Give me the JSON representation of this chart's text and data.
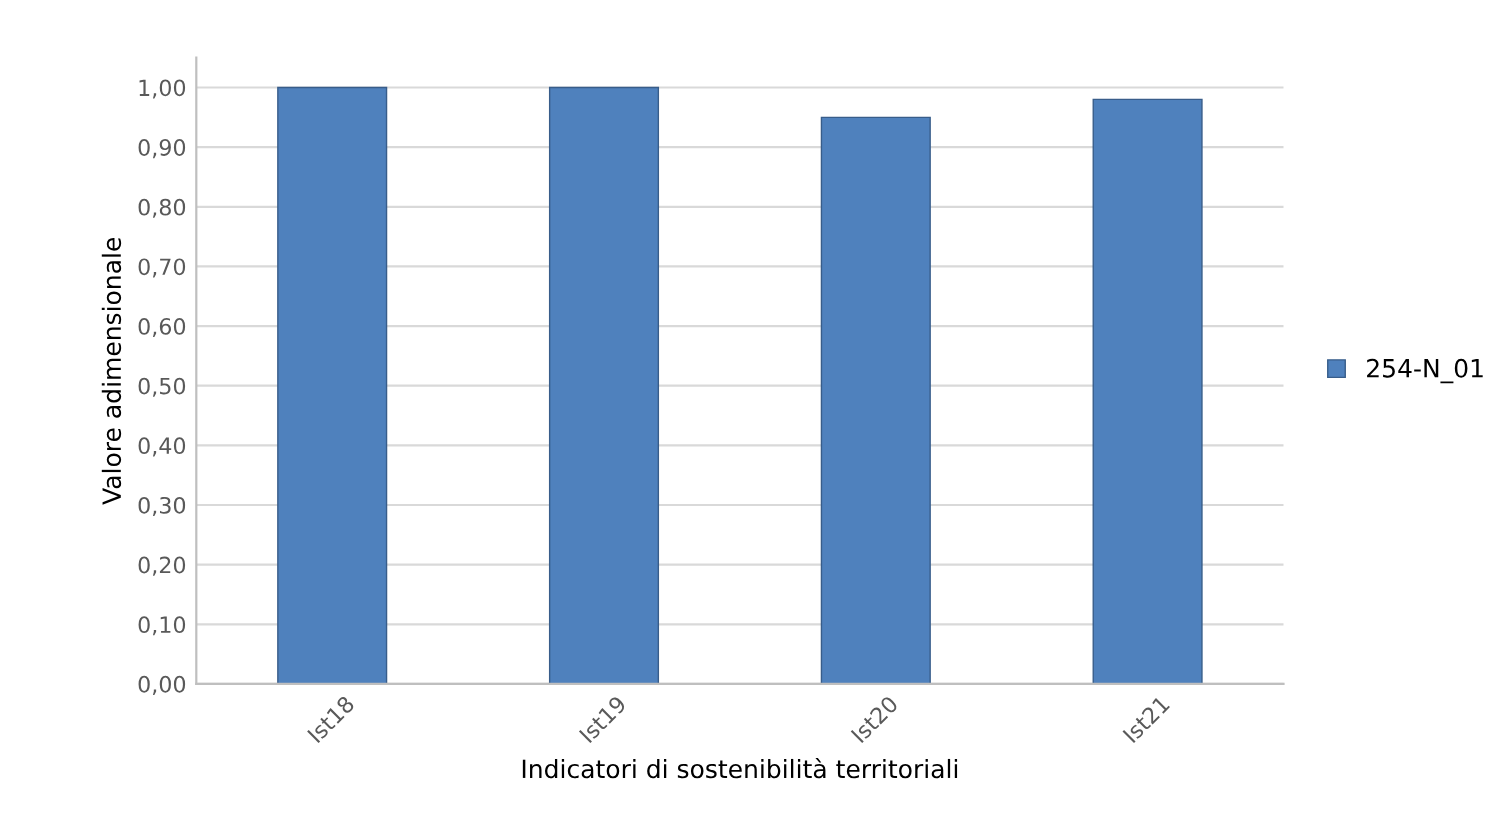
{
  "chart_data": {
    "type": "bar",
    "xlabel": "Indicatori di sostenibilità territoriali",
    "ylabel": "Valore adimensionale",
    "categories": [
      "Ist18",
      "Ist19",
      "Ist20",
      "Ist21"
    ],
    "series": [
      {
        "name": "254-N_01",
        "color": "#4f81bd",
        "values": [
          1.0,
          1.0,
          0.95,
          0.98
        ]
      }
    ],
    "ylim": [
      0,
      1.05
    ],
    "yticks": [
      {
        "value": 0,
        "label": "0,00"
      },
      {
        "value": 0.1,
        "label": "0,10"
      },
      {
        "value": 0.2,
        "label": "0,20"
      },
      {
        "value": 0.3,
        "label": "0,30"
      },
      {
        "value": 0.4,
        "label": "0,40"
      },
      {
        "value": 0.5,
        "label": "0,50"
      },
      {
        "value": 0.6,
        "label": "0,60"
      },
      {
        "value": 0.7,
        "label": "0,70"
      },
      {
        "value": 0.8,
        "label": "0,80"
      },
      {
        "value": 0.9,
        "label": "0,90"
      },
      {
        "value": 1.0,
        "label": "1,00"
      }
    ],
    "grid": "y",
    "legend": "right"
  }
}
